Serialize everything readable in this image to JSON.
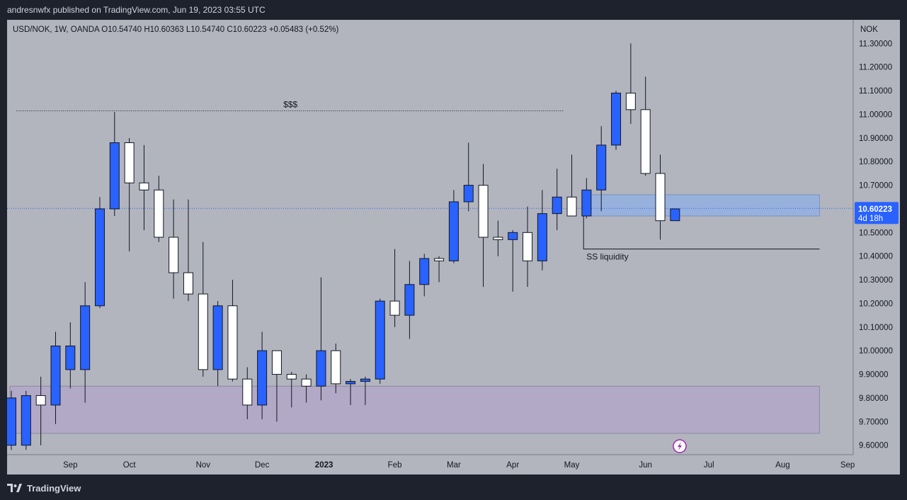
{
  "header": {
    "publish_line": "andresnwfx published on TradingView.com, Jun 19, 2023 03:55 UTC"
  },
  "footer": {
    "brand": "TradingView"
  },
  "colors": {
    "bull": "#2962ff",
    "bear": "#ffffff",
    "plot_bg": "#b2b5be",
    "zone_blue": "#8fb0e6",
    "zone_purple": "#b1a9c6",
    "price_label": "#2962ff"
  },
  "chart_data": {
    "type": "candlestick",
    "symbol_line": "USD/NOK, 1W, OANDA  O10.54740  H10.60363  L10.54740  C10.60223  +0.05483 (+0.52%)",
    "currency": "NOK",
    "ylim": [
      9.56,
      11.4
    ],
    "y_ticks": [
      11.3,
      11.2,
      11.1,
      11.0,
      10.9,
      10.8,
      10.7,
      10.6,
      10.5,
      10.4,
      10.3,
      10.2,
      10.1,
      10.0,
      9.9,
      9.8,
      9.7,
      9.6
    ],
    "y_tick_labels": [
      "11.30000",
      "11.20000",
      "11.10000",
      "11.00000",
      "10.90000",
      "10.80000",
      "10.70000",
      "10.60000",
      "10.50000",
      "10.40000",
      "10.30000",
      "10.20000",
      "10.10000",
      "10.00000",
      "9.90000",
      "9.80000",
      "9.70000",
      "9.60000"
    ],
    "x_tick_labels": [
      {
        "label": "Sep",
        "week": 4
      },
      {
        "label": "Oct",
        "week": 8
      },
      {
        "label": "Nov",
        "week": 13
      },
      {
        "label": "Dec",
        "week": 17
      },
      {
        "label": "2023",
        "week": 21.2
      },
      {
        "label": "Feb",
        "week": 26
      },
      {
        "label": "Mar",
        "week": 30
      },
      {
        "label": "Apr",
        "week": 34
      },
      {
        "label": "May",
        "week": 38
      },
      {
        "label": "Jun",
        "week": 43
      },
      {
        "label": "Jul",
        "week": 47.3
      },
      {
        "label": "Aug",
        "week": 52.3
      },
      {
        "label": "Sep",
        "week": 56.7
      }
    ],
    "weeks_total": 57.0,
    "candles": [
      {
        "o": 9.6,
        "h": 9.83,
        "l": 9.58,
        "c": 9.8
      },
      {
        "o": 9.6,
        "h": 9.83,
        "l": 9.58,
        "c": 9.81
      },
      {
        "o": 9.81,
        "h": 9.89,
        "l": 9.6,
        "c": 9.77
      },
      {
        "o": 9.77,
        "h": 10.08,
        "l": 9.69,
        "c": 10.02
      },
      {
        "o": 9.92,
        "h": 10.12,
        "l": 9.84,
        "c": 10.02
      },
      {
        "o": 9.92,
        "h": 10.29,
        "l": 9.78,
        "c": 10.19
      },
      {
        "o": 10.19,
        "h": 10.65,
        "l": 10.18,
        "c": 10.6
      },
      {
        "o": 10.6,
        "h": 11.01,
        "l": 10.57,
        "c": 10.88
      },
      {
        "o": 10.88,
        "h": 10.9,
        "l": 10.42,
        "c": 10.71
      },
      {
        "o": 10.71,
        "h": 10.87,
        "l": 10.51,
        "c": 10.68
      },
      {
        "o": 10.68,
        "h": 10.74,
        "l": 10.46,
        "c": 10.48
      },
      {
        "o": 10.48,
        "h": 10.64,
        "l": 10.22,
        "c": 10.33
      },
      {
        "o": 10.33,
        "h": 10.64,
        "l": 10.21,
        "c": 10.24
      },
      {
        "o": 10.24,
        "h": 10.46,
        "l": 9.89,
        "c": 9.92
      },
      {
        "o": 9.92,
        "h": 10.21,
        "l": 9.85,
        "c": 10.19
      },
      {
        "o": 10.19,
        "h": 10.3,
        "l": 9.87,
        "c": 9.88
      },
      {
        "o": 9.88,
        "h": 9.93,
        "l": 9.71,
        "c": 9.77
      },
      {
        "o": 9.77,
        "h": 10.08,
        "l": 9.71,
        "c": 10.0
      },
      {
        "o": 10.0,
        "h": 10.0,
        "l": 9.7,
        "c": 9.9
      },
      {
        "o": 9.9,
        "h": 9.91,
        "l": 9.76,
        "c": 9.88
      },
      {
        "o": 9.88,
        "h": 9.9,
        "l": 9.78,
        "c": 9.85
      },
      {
        "o": 9.85,
        "h": 10.31,
        "l": 9.79,
        "c": 10.0
      },
      {
        "o": 10.0,
        "h": 10.03,
        "l": 9.82,
        "c": 9.86
      },
      {
        "o": 9.86,
        "h": 9.88,
        "l": 9.77,
        "c": 9.87
      },
      {
        "o": 9.87,
        "h": 9.89,
        "l": 9.77,
        "c": 9.88
      },
      {
        "o": 9.88,
        "h": 10.22,
        "l": 9.86,
        "c": 10.21
      },
      {
        "o": 10.21,
        "h": 10.43,
        "l": 10.1,
        "c": 10.15
      },
      {
        "o": 10.15,
        "h": 10.38,
        "l": 10.05,
        "c": 10.28
      },
      {
        "o": 10.28,
        "h": 10.41,
        "l": 10.23,
        "c": 10.39
      },
      {
        "o": 10.39,
        "h": 10.4,
        "l": 10.29,
        "c": 10.38
      },
      {
        "o": 10.38,
        "h": 10.68,
        "l": 10.37,
        "c": 10.63
      },
      {
        "o": 10.63,
        "h": 10.88,
        "l": 10.59,
        "c": 10.7
      },
      {
        "o": 10.7,
        "h": 10.79,
        "l": 10.27,
        "c": 10.48
      },
      {
        "o": 10.48,
        "h": 10.55,
        "l": 10.4,
        "c": 10.47
      },
      {
        "o": 10.47,
        "h": 10.51,
        "l": 10.25,
        "c": 10.5
      },
      {
        "o": 10.5,
        "h": 10.61,
        "l": 10.27,
        "c": 10.38
      },
      {
        "o": 10.38,
        "h": 10.68,
        "l": 10.34,
        "c": 10.58
      },
      {
        "o": 10.58,
        "h": 10.77,
        "l": 10.51,
        "c": 10.65
      },
      {
        "o": 10.65,
        "h": 10.83,
        "l": 10.57,
        "c": 10.57
      },
      {
        "o": 10.57,
        "h": 10.73,
        "l": 10.56,
        "c": 10.68
      },
      {
        "o": 10.68,
        "h": 10.95,
        "l": 10.59,
        "c": 10.87
      },
      {
        "o": 10.87,
        "h": 11.1,
        "l": 10.85,
        "c": 11.09
      },
      {
        "o": 11.09,
        "h": 11.3,
        "l": 10.96,
        "c": 11.02
      },
      {
        "o": 11.02,
        "h": 11.16,
        "l": 10.74,
        "c": 10.75
      },
      {
        "o": 10.75,
        "h": 10.83,
        "l": 10.47,
        "c": 10.55
      },
      {
        "o": 10.55,
        "h": 10.6,
        "l": 10.55,
        "c": 10.6
      }
    ],
    "last_price": {
      "value": 10.60223,
      "label": "10.60223",
      "countdown": "4d 18h"
    },
    "annotations": {
      "top_text": "$$$",
      "top_level": 11.015,
      "top_line_weeks": [
        0.35,
        37.5
      ],
      "bottom_text": "SS liquidity",
      "bottom_level": 10.43,
      "bottom_line_weeks": [
        38.8,
        54.8
      ],
      "blue_zone": {
        "from": 10.57,
        "to": 10.66,
        "weeks": [
          38.8,
          54.8
        ]
      },
      "purple_zone": {
        "from": 9.65,
        "to": 9.85,
        "weeks": [
          -0.1,
          54.8
        ]
      }
    }
  }
}
